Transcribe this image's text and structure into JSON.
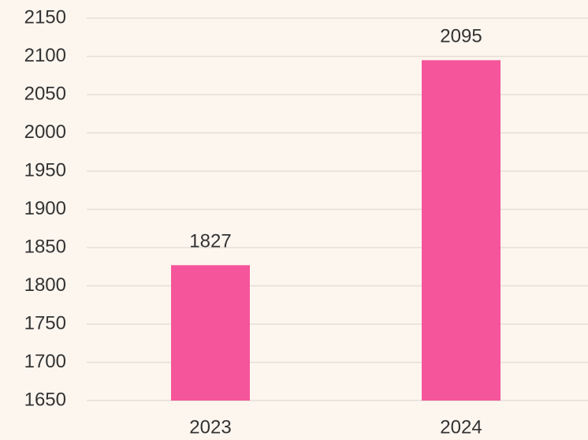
{
  "chart_data": {
    "type": "bar",
    "categories": [
      "2023",
      "2024"
    ],
    "values": [
      1827,
      2095
    ],
    "color": "#f5559a",
    "ylim": [
      1650,
      2150
    ],
    "yticks": [
      1650,
      1700,
      1750,
      1800,
      1850,
      1900,
      1950,
      2000,
      2050,
      2100,
      2150
    ],
    "grid": true
  }
}
